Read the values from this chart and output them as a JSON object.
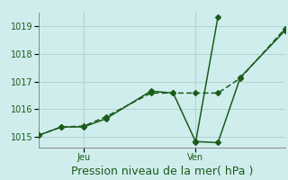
{
  "title": "",
  "xlabel": "Pression niveau de la mer( hPa )",
  "bg_color": "#d0eded",
  "line_color": "#1a5c1a",
  "grid_color": "#aed4d4",
  "ylim": [
    1014.6,
    1019.5
  ],
  "yticks": [
    1015,
    1016,
    1017,
    1018,
    1019
  ],
  "xtick_labels": [
    "Jeu",
    "Ven"
  ],
  "xtick_positions": [
    2,
    7
  ],
  "xlim": [
    0,
    11
  ],
  "line1_x": [
    0,
    1,
    2,
    3,
    5,
    6,
    7,
    8,
    9,
    11
  ],
  "line1_y": [
    1015.05,
    1015.35,
    1015.35,
    1015.65,
    1016.65,
    1016.58,
    1014.82,
    1014.78,
    1017.15,
    1018.85
  ],
  "line2_x": [
    0,
    1,
    2,
    3,
    5,
    6,
    7,
    8,
    9,
    11
  ],
  "line2_y": [
    1015.05,
    1015.35,
    1015.38,
    1015.72,
    1016.58,
    1016.58,
    1016.58,
    1016.58,
    1017.12,
    1018.92
  ],
  "line3_x": [
    7,
    8
  ],
  "line3_y": [
    1014.78,
    1019.35
  ],
  "marker_size": 3,
  "linewidth": 1.1,
  "xlabel_fontsize": 9,
  "tick_fontsize": 7
}
